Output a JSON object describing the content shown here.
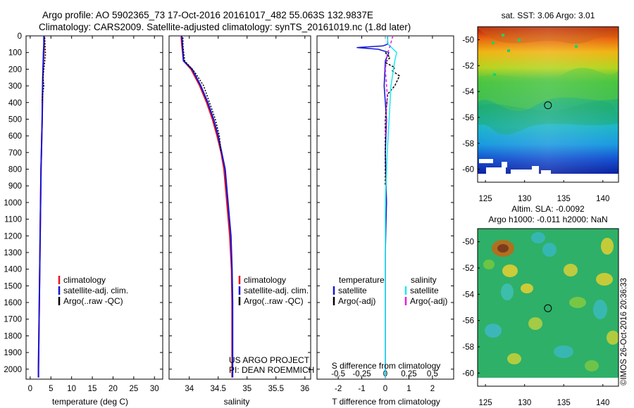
{
  "header": {
    "title_line1": "Argo profile: AO 5902365_73 17-Oct-2016 20161017_482 55.063S 132.9837E",
    "title_line2": "Climatology: CARS2009. Satellite-adjusted climatology: synTS_20161019.nc (1.8d later)"
  },
  "colors": {
    "climatology": "#e8141e",
    "satellite": "#1515d8",
    "argo": "#000000",
    "sat_salinity": "#1ee8ee",
    "argo_salinity": "#e020e0"
  },
  "chart_data": [
    {
      "id": "temperature",
      "type": "line",
      "xlabel": "temperature (deg C)",
      "ylabel": "",
      "xlim": [
        -1,
        32
      ],
      "ylim": [
        2060,
        0
      ],
      "xticks": [
        0,
        5,
        10,
        15,
        20,
        25,
        30
      ],
      "yticks": [
        0,
        100,
        200,
        300,
        400,
        500,
        600,
        700,
        800,
        900,
        1000,
        1100,
        1200,
        1300,
        1400,
        1500,
        1600,
        1700,
        1800,
        1900,
        2000
      ],
      "legend": [
        "climatology",
        "satellite-adj. clim.",
        "Argo(..raw -QC)"
      ],
      "series": [
        {
          "name": "climatology",
          "color_key": "climatology",
          "width": 2,
          "x": [
            3.4,
            3.35,
            3.3,
            3.1,
            3.0,
            2.95,
            2.9,
            2.8,
            2.7,
            2.6,
            2.5,
            2.4,
            2.3,
            2.2,
            2.1,
            2.0,
            2.0
          ],
          "y": [
            0,
            50,
            100,
            200,
            300,
            400,
            500,
            600,
            700,
            800,
            1000,
            1200,
            1400,
            1600,
            1800,
            2000,
            2050
          ]
        },
        {
          "name": "satellite-adj. clim.",
          "color_key": "satellite",
          "width": 2,
          "x": [
            3.3,
            3.3,
            3.2,
            3.1,
            3.0,
            2.95,
            2.9,
            2.8,
            2.7,
            2.6,
            2.5,
            2.4,
            2.3,
            2.2,
            2.1,
            2.0,
            2.0
          ],
          "y": [
            0,
            50,
            100,
            200,
            300,
            400,
            500,
            600,
            700,
            800,
            1000,
            1200,
            1400,
            1600,
            1800,
            2000,
            2050
          ]
        },
        {
          "name": "Argo(..raw -QC)",
          "color_key": "argo",
          "width": 1.5,
          "dash": "2,2",
          "x": [
            3.5,
            3.6,
            3.7,
            3.3,
            3.1,
            3.3,
            3.0,
            2.9
          ],
          "y": [
            10,
            60,
            110,
            200,
            250,
            300,
            350,
            400
          ]
        }
      ]
    },
    {
      "id": "salinity",
      "type": "line",
      "xlabel": "salinity",
      "ylabel": "",
      "xlim": [
        33.65,
        36.1
      ],
      "ylim": [
        2060,
        0
      ],
      "xticks": [
        34,
        34.5,
        35,
        35.5,
        36
      ],
      "xticklabels": [
        "34",
        "34.5",
        "35",
        "35.5",
        "36"
      ],
      "legend": [
        "climatology",
        "satellite-adj. clim.",
        "Argo(..raw -QC)"
      ],
      "annotation": [
        "US ARGO PROJECT",
        "PI: DEAN ROEMMICH"
      ],
      "series": [
        {
          "name": "climatology",
          "color_key": "climatology",
          "width": 2,
          "x": [
            33.86,
            33.87,
            33.9,
            34.03,
            34.18,
            34.3,
            34.4,
            34.48,
            34.55,
            34.6,
            34.65,
            34.7,
            34.73,
            34.74,
            34.74,
            34.74,
            34.74
          ],
          "y": [
            0,
            50,
            150,
            200,
            300,
            400,
            500,
            600,
            700,
            800,
            1000,
            1200,
            1400,
            1600,
            1800,
            2000,
            2050
          ]
        },
        {
          "name": "satellite-adj. clim.",
          "color_key": "satellite",
          "width": 2,
          "x": [
            33.87,
            33.88,
            33.9,
            34.05,
            34.2,
            34.32,
            34.42,
            34.5,
            34.56,
            34.62,
            34.67,
            34.72,
            34.74,
            34.75,
            34.75,
            34.75,
            34.75
          ],
          "y": [
            0,
            50,
            150,
            200,
            300,
            400,
            500,
            600,
            700,
            800,
            1000,
            1200,
            1400,
            1600,
            1800,
            2000,
            2050
          ]
        },
        {
          "name": "Argo(..raw -QC)",
          "color_key": "argo",
          "width": 1.5,
          "dash": "2,2",
          "x": [
            33.89,
            33.89,
            33.92,
            34.1,
            34.25,
            34.35,
            34.45,
            34.52,
            34.55
          ],
          "y": [
            10,
            60,
            150,
            220,
            300,
            400,
            500,
            600,
            700
          ]
        }
      ]
    },
    {
      "id": "differences",
      "type": "line",
      "xlabel": "T difference from climatology",
      "ylabel": "",
      "xlim": [
        -2.9,
        2.9
      ],
      "ylim": [
        2060,
        0
      ],
      "xticks": [
        -2,
        -1,
        0,
        1,
        2
      ],
      "top_axis_label": "S difference from climatology",
      "s_xticks": [
        -0.5,
        -0.25,
        0,
        0.25,
        0.5
      ],
      "s_xticklabels": [
        "-0.5",
        "-0.25",
        "0",
        "0.25",
        "0.5"
      ],
      "legend_titles": [
        "temperature",
        "salinity"
      ],
      "legend": [
        "satellite",
        "Argo(-adj)",
        "satellite",
        "Argo(-adj)"
      ],
      "series": [
        {
          "name": "T satellite",
          "color_key": "satellite",
          "width": 1.5,
          "x": [
            0.1,
            0.1,
            -0.1,
            -1.2,
            -0.3,
            0.15,
            0.0,
            -0.05,
            0.05,
            0.0,
            0.05,
            0.0,
            0.0,
            0.0,
            0.0
          ],
          "y": [
            0,
            50,
            60,
            70,
            80,
            100,
            150,
            300,
            500,
            700,
            1000,
            1300,
            1600,
            1900,
            2050
          ]
        },
        {
          "name": "T Argo(-adj)",
          "color_key": "argo",
          "width": 1.5,
          "dash": "3,2",
          "x": [
            0.0,
            0.2,
            0.0,
            0.4,
            0.3,
            0.6,
            0.5,
            0.4,
            0.1,
            0.0,
            0.0
          ],
          "y": [
            100,
            130,
            160,
            190,
            210,
            240,
            270,
            300,
            350,
            500,
            900
          ]
        },
        {
          "name": "S satellite",
          "color_key": "sat_salinity",
          "width": 1.5,
          "x": [
            0.02,
            0.03,
            0.12,
            0.1,
            0.06,
            0.04,
            0.02,
            0.0,
            0.0,
            0.0,
            0.0
          ],
          "y": [
            0,
            50,
            100,
            150,
            300,
            500,
            700,
            1000,
            1400,
            1800,
            2050
          ]
        },
        {
          "name": "S Argo(-adj)",
          "color_key": "argo_salinity",
          "width": 1.5,
          "dash": "4,3",
          "x": [
            0.08,
            0.05,
            0.02,
            0.0,
            0.02,
            0.0
          ],
          "y": [
            0,
            60,
            110,
            200,
            350,
            600
          ]
        }
      ]
    },
    {
      "id": "sst_map",
      "type": "heatmap",
      "title": "sat. SST: 3.06 Argo: 3.01",
      "xlim": [
        124,
        142
      ],
      "ylim": [
        -61,
        -49
      ],
      "xticks": [
        125,
        130,
        135,
        140
      ],
      "yticks": [
        -50,
        -52,
        -54,
        -56,
        -58,
        -60
      ],
      "marker": {
        "lon": 132.9837,
        "lat": -55.063
      }
    },
    {
      "id": "sla_map",
      "type": "heatmap",
      "title": "Altim. SLA: -0.0092",
      "subtitle": "Argo h1000: -0.011 h2000: NaN",
      "xlim": [
        124,
        142
      ],
      "ylim": [
        -61,
        -49
      ],
      "xticks": [
        125,
        130,
        135,
        140
      ],
      "yticks": [
        -50,
        -52,
        -54,
        -56,
        -58,
        -60
      ],
      "marker": {
        "lon": 132.9837,
        "lat": -55.063
      }
    }
  ],
  "footer": {
    "credit": "©IMOS 26-Oct-2016 20:36:33"
  }
}
